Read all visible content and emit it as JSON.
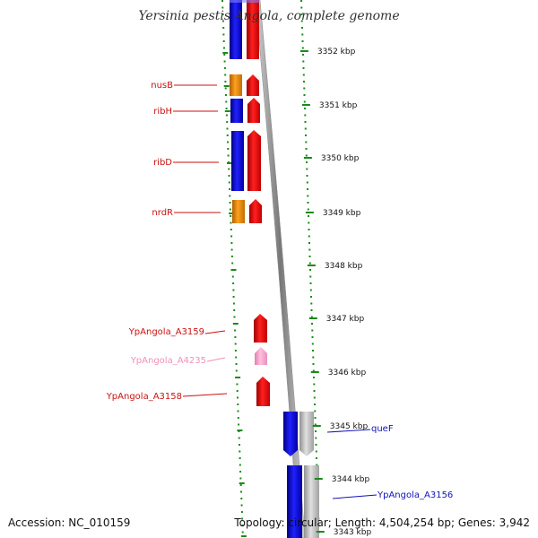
{
  "title": "Yersinia pestis Angola, complete genome",
  "accession_text": "Accession: NC_010159",
  "topology_text": "Topology: circular; Length: 4,504,254 bp; Genes: 3,942",
  "colors": {
    "tick": "#1a8a1a",
    "blue_gene": "#1010f0",
    "red_gene": "#f01010",
    "orange_gene": "#f08c10",
    "pink_gene": "#f4a0c8",
    "gray_gene": "#c8c8c8",
    "label_red": "#cc1111",
    "label_blue": "#1111bb",
    "label_pink": "#f090b8"
  },
  "kbp_ticks": [
    "3352 kbp",
    "3351 kbp",
    "3350 kbp",
    "3349 kbp",
    "3348 kbp",
    "3347 kbp",
    "3346 kbp",
    "3345 kbp",
    "3344 kbp",
    "3343 kbp"
  ],
  "gene_labels": [
    {
      "text": "nusB",
      "color": "red"
    },
    {
      "text": "ribH",
      "color": "red"
    },
    {
      "text": "ribD",
      "color": "red"
    },
    {
      "text": "nrdR",
      "color": "red"
    },
    {
      "text": "YpAngola_A3159",
      "color": "red"
    },
    {
      "text": "YpAngola_A4235",
      "color": "pink"
    },
    {
      "text": "YpAngola_A3158",
      "color": "red"
    },
    {
      "text": "queF",
      "color": "blue"
    },
    {
      "text": "YpAngola_A3156",
      "color": "blue"
    }
  ]
}
